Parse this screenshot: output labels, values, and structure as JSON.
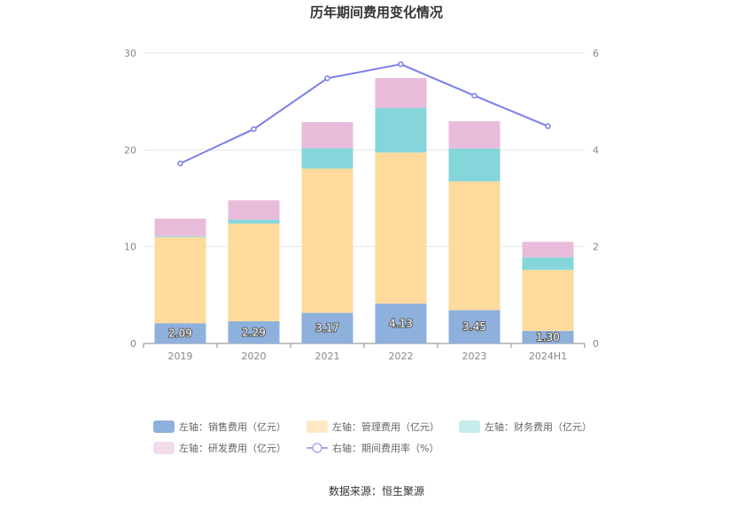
{
  "chart_data": {
    "type": "bar",
    "title": "历年期间费用变化情况",
    "categories": [
      "2019",
      "2020",
      "2021",
      "2022",
      "2023",
      "2024H1"
    ],
    "left_axis": {
      "min": 0,
      "max": 30,
      "ticks": [
        "0",
        "10",
        "20",
        "30"
      ]
    },
    "right_axis": {
      "min": 0,
      "max": 6,
      "ticks": [
        "0",
        "2",
        "4",
        "6"
      ]
    },
    "series": [
      {
        "name": "左轴：销售费用（亿元）",
        "kind": "bar",
        "color": "#8eb0dc",
        "values": [
          2.09,
          2.29,
          3.17,
          4.13,
          3.45,
          1.3
        ],
        "labels": [
          "2.09",
          "2.29",
          "3.17",
          "4.13",
          "3.45",
          "1.30"
        ]
      },
      {
        "name": "左轴：管理费用（亿元）",
        "kind": "bar",
        "color": "#fedb9c",
        "values": [
          8.9,
          10.1,
          14.9,
          15.6,
          13.3,
          6.3
        ]
      },
      {
        "name": "左轴：财务费用（亿元）",
        "kind": "bar",
        "color": "#85d6db",
        "values": [
          0.1,
          0.4,
          2.1,
          4.6,
          3.4,
          1.3
        ]
      },
      {
        "name": "左轴：研发费用（亿元）",
        "kind": "bar",
        "color": "#e9bbdb",
        "values": [
          1.8,
          2.0,
          2.7,
          3.1,
          2.8,
          1.6
        ]
      },
      {
        "name": "右轴：期间费用率（%）",
        "kind": "line",
        "color": "#7b7fe8",
        "values": [
          3.72,
          4.43,
          5.48,
          5.77,
          5.12,
          4.49
        ]
      }
    ],
    "legend_colors": [
      "#8eb0dc",
      "#ffe9c5",
      "#c4ebee",
      "#f3dbeb",
      "#a6a8f0"
    ]
  },
  "source": "数据来源：恒生聚源"
}
